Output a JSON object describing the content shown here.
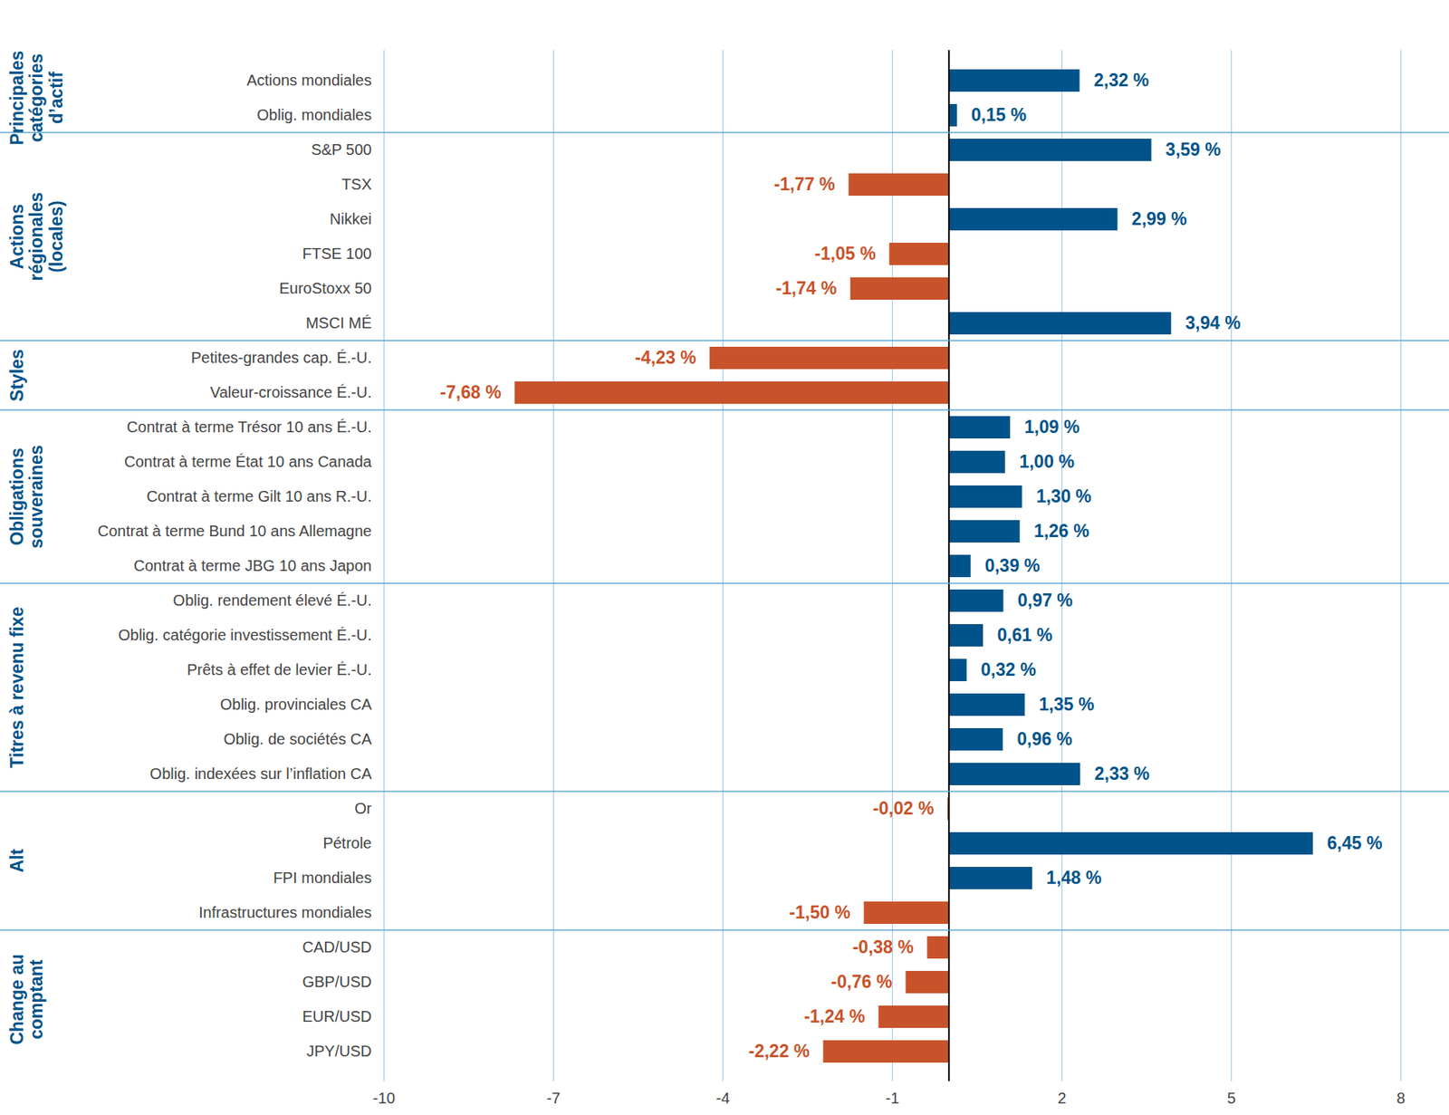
{
  "chart_data": {
    "type": "bar",
    "orientation": "horizontal",
    "data_labels": true,
    "grid": true,
    "categories": [
      "Actions mondiales",
      "Oblig. mondiales",
      "S&P 500",
      "TSX",
      "Nikkei",
      "FTSE 100",
      "EuroStoxx 50",
      "MSCI MÉ",
      "Petites-grandes cap. É.-U.",
      "Valeur-croissance É.-U.",
      "Contrat à terme Trésor 10 ans É.-U.",
      "Contrat à terme État 10 ans Canada",
      "Contrat à terme Gilt 10 ans R.-U.",
      "Contrat à terme Bund 10 ans Allemagne",
      "Contrat à terme JBG 10 ans Japon",
      "Oblig. rendement élevé É.-U.",
      "Oblig. catégorie investissement É.-U.",
      "Prêts à effet de levier É.-U.",
      "Oblig. provinciales CA",
      "Oblig. de sociétés CA",
      "Oblig. indexées sur l’inflation CA",
      "Or",
      "Pétrole",
      "FPI mondiales",
      "Infrastructures mondiales",
      "CAD/USD",
      "GBP/USD",
      "EUR/USD",
      "JPY/USD"
    ],
    "values": [
      2.32,
      0.15,
      3.59,
      -1.77,
      2.99,
      -1.05,
      -1.74,
      3.94,
      -4.23,
      -7.68,
      1.09,
      1.0,
      1.3,
      1.26,
      0.39,
      0.97,
      0.61,
      0.32,
      1.35,
      0.96,
      2.33,
      -0.02,
      6.45,
      1.48,
      -1.5,
      -0.38,
      -0.76,
      -1.24,
      -2.22
    ],
    "value_labels": [
      "2,32 %",
      "0,15 %",
      "3,59 %",
      "-1,77 %",
      "2,99 %",
      "-1,05 %",
      "-1,74 %",
      "3,94 %",
      "-4,23 %",
      "-7,68 %",
      "1,09 %",
      "1,00 %",
      "1,30 %",
      "1,26 %",
      "0,39 %",
      "0,97 %",
      "0,61 %",
      "0,32 %",
      "1,35 %",
      "0,96 %",
      "2,33 %",
      "-0,02 %",
      "6,45 %",
      "1,48 %",
      "-1,50 %",
      "-0,38 %",
      "-0,76 %",
      "-1,24 %",
      "-2,22 %"
    ],
    "colors": [
      "#00538a",
      "#00538a",
      "#00538a",
      "#c8532a",
      "#00538a",
      "#c8532a",
      "#c8532a",
      "#00538a",
      "#c8532a",
      "#c8532a",
      "#00538a",
      "#00538a",
      "#00538a",
      "#00538a",
      "#00538a",
      "#00538a",
      "#00538a",
      "#00538a",
      "#00538a",
      "#00538a",
      "#00538a",
      "#c8532a",
      "#00538a",
      "#00538a",
      "#c8532a",
      "#c8532a",
      "#c8532a",
      "#c8532a",
      "#c8532a"
    ],
    "groups": [
      {
        "label": [
          "Principales",
          "catégories",
          "d’actif"
        ],
        "categories": [
          "Actions mondiales",
          "Oblig. mondiales"
        ]
      },
      {
        "label": [
          "Actions",
          "régionales",
          "(locales)"
        ],
        "categories": [
          "S&P 500",
          "TSX",
          "Nikkei",
          "FTSE 100",
          "EuroStoxx 50",
          "MSCI MÉ"
        ]
      },
      {
        "label": [
          "Styles"
        ],
        "categories": [
          "Petites-grandes cap. É.-U.",
          "Valeur-croissance É.-U."
        ]
      },
      {
        "label": [
          "Obligations",
          "souveraines"
        ],
        "categories": [
          "Contrat à terme Trésor 10 ans É.-U.",
          "Contrat à terme État 10 ans Canada",
          "Contrat à terme Gilt 10 ans R.-U.",
          "Contrat à terme Bund 10 ans Allemagne",
          "Contrat à terme JBG 10 ans Japon"
        ]
      },
      {
        "label": [
          "Titres à revenu fixe"
        ],
        "categories": [
          "Oblig. rendement élevé É.-U.",
          "Oblig. catégorie investissement É.-U.",
          "Prêts à effet de levier É.-U.",
          "Oblig. provinciales CA",
          "Oblig. de sociétés CA",
          "Oblig. indexées sur l’inflation CA"
        ]
      },
      {
        "label": [
          "Alt"
        ],
        "categories": [
          "Or",
          "Pétrole",
          "FPI mondiales",
          "Infrastructures mondiales"
        ]
      },
      {
        "label": [
          "Change au",
          "comptant"
        ],
        "categories": [
          "CAD/USD",
          "GBP/USD",
          "EUR/USD",
          "JPY/USD"
        ]
      }
    ],
    "xlim": [
      -10,
      8
    ],
    "xticks": [
      -10,
      -7,
      -4,
      -1,
      2,
      5,
      8
    ]
  }
}
